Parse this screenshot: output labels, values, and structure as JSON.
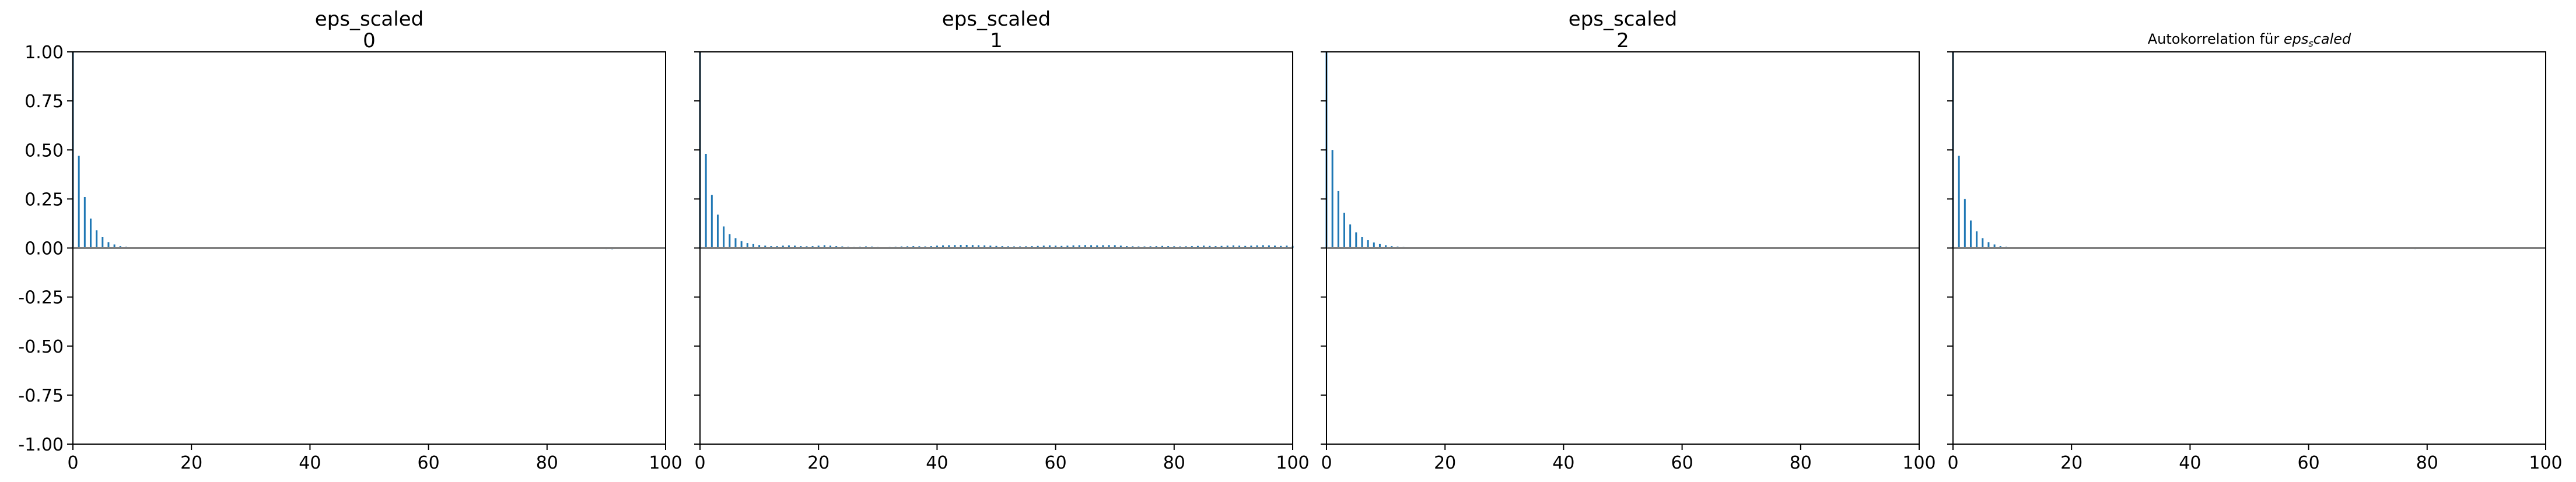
{
  "chart_data": [
    {
      "type": "bar",
      "title": "eps_scaled",
      "subtitle": "0",
      "xlim": [
        0,
        100
      ],
      "ylim": [
        -1.0,
        1.0
      ],
      "xticks": [
        "0",
        "20",
        "40",
        "60",
        "80",
        "100"
      ],
      "yticks": [
        "1.00",
        "0.75",
        "0.50",
        "0.25",
        "0.00",
        "-0.25",
        "-0.50",
        "-0.75",
        "-1.00"
      ],
      "show_yticklabels": true,
      "grid": false,
      "color": "#1f77b4",
      "values": [
        1.0,
        0.47,
        0.26,
        0.15,
        0.09,
        0.055,
        0.03,
        0.018,
        0.01,
        0.006,
        0.004,
        0.003,
        0.002,
        0.001,
        0.0,
        0.0,
        0.0,
        0.0,
        0.0,
        0.0,
        -0.001,
        -0.002,
        -0.003,
        -0.002,
        -0.001,
        0.0,
        0.0,
        0.0,
        -0.001,
        -0.001,
        0.0,
        0.0,
        -0.001,
        -0.002,
        -0.002,
        -0.001,
        0.0,
        0.0,
        0.0,
        -0.001,
        -0.001,
        0.0,
        0.0,
        -0.001,
        -0.002,
        -0.003,
        -0.002,
        -0.001,
        0.0,
        0.0,
        -0.001,
        -0.001,
        0.0,
        0.0,
        0.0,
        -0.001,
        -0.002,
        -0.001,
        0.0,
        0.0,
        0.0,
        0.0,
        -0.001,
        -0.002,
        -0.002,
        -0.001,
        0.0,
        0.0,
        -0.001,
        -0.002,
        -0.003,
        -0.002,
        -0.001,
        0.0,
        0.0,
        0.0,
        -0.001,
        -0.001,
        0.0,
        0.0,
        -0.001,
        -0.002,
        -0.002,
        -0.001,
        0.0,
        0.0,
        -0.001,
        -0.002,
        -0.003,
        -0.004,
        -0.005,
        -0.006,
        -0.004,
        -0.003,
        -0.002,
        -0.001,
        0.0,
        -0.001,
        -0.002,
        -0.001
      ]
    },
    {
      "type": "bar",
      "title": "eps_scaled",
      "subtitle": "1",
      "xlim": [
        0,
        100
      ],
      "ylim": [
        -1.0,
        1.0
      ],
      "xticks": [
        "0",
        "20",
        "40",
        "60",
        "80",
        "100"
      ],
      "show_yticklabels": false,
      "grid": false,
      "color": "#1f77b4",
      "values": [
        1.0,
        0.48,
        0.27,
        0.17,
        0.11,
        0.07,
        0.05,
        0.035,
        0.025,
        0.02,
        0.015,
        0.012,
        0.01,
        0.01,
        0.012,
        0.013,
        0.012,
        0.01,
        0.009,
        0.01,
        0.012,
        0.014,
        0.012,
        0.01,
        0.008,
        0.006,
        0.005,
        0.006,
        0.008,
        0.007,
        0.005,
        0.004,
        0.005,
        0.006,
        0.008,
        0.009,
        0.01,
        0.009,
        0.008,
        0.01,
        0.012,
        0.013,
        0.014,
        0.015,
        0.016,
        0.016,
        0.015,
        0.014,
        0.013,
        0.012,
        0.011,
        0.01,
        0.009,
        0.008,
        0.008,
        0.009,
        0.01,
        0.011,
        0.012,
        0.013,
        0.012,
        0.011,
        0.012,
        0.013,
        0.014,
        0.015,
        0.014,
        0.013,
        0.014,
        0.015,
        0.014,
        0.012,
        0.01,
        0.009,
        0.008,
        0.008,
        0.009,
        0.01,
        0.011,
        0.01,
        0.009,
        0.008,
        0.009,
        0.01,
        0.011,
        0.012,
        0.011,
        0.01,
        0.011,
        0.012,
        0.013,
        0.012,
        0.011,
        0.012,
        0.013,
        0.014,
        0.013,
        0.012,
        0.011,
        0.012,
        0.011
      ]
    },
    {
      "type": "bar",
      "title": "eps_scaled",
      "subtitle": "2",
      "xlim": [
        0,
        100
      ],
      "ylim": [
        -1.0,
        1.0
      ],
      "xticks": [
        "0",
        "20",
        "40",
        "60",
        "80",
        "100"
      ],
      "show_yticklabels": false,
      "grid": false,
      "color": "#1f77b4",
      "values": [
        1.0,
        0.5,
        0.29,
        0.18,
        0.12,
        0.08,
        0.055,
        0.04,
        0.028,
        0.02,
        0.014,
        0.01,
        0.007,
        0.005,
        0.003,
        0.002,
        0.001,
        0.0,
        0.0,
        0.0,
        0.001,
        0.002,
        0.001,
        0.0,
        0.0,
        0.0,
        0.001,
        0.0,
        0.0,
        -0.001,
        0.0,
        0.0,
        0.0,
        0.001,
        0.002,
        0.001,
        0.0,
        0.0,
        0.0,
        0.0,
        0.001,
        0.001,
        0.0,
        0.0,
        0.0,
        0.0,
        0.0,
        0.001,
        0.002,
        0.001,
        0.0,
        0.0,
        0.0,
        0.001,
        0.001,
        0.0,
        0.0,
        0.0,
        0.0,
        0.0,
        0.001,
        0.002,
        0.002,
        0.001,
        0.0,
        0.0,
        0.0,
        0.001,
        0.001,
        0.0,
        0.0,
        0.0,
        0.0,
        0.001,
        0.001,
        0.0,
        0.0,
        0.0,
        0.0,
        0.0,
        0.001,
        0.001,
        0.0,
        0.0,
        0.0,
        0.001,
        0.002,
        0.001,
        0.0,
        0.0,
        0.0,
        0.0,
        0.001,
        0.001,
        0.0,
        0.0,
        0.0,
        0.0,
        0.0,
        0.001,
        0.0
      ]
    },
    {
      "type": "bar",
      "title": "Autokorrelation für eps",
      "title_sub": "s",
      "title_suffix": "caled",
      "xlim": [
        0,
        100
      ],
      "ylim": [
        -1.0,
        1.0
      ],
      "xticks": [
        "0",
        "20",
        "40",
        "60",
        "80",
        "100"
      ],
      "show_yticklabels": false,
      "grid": false,
      "color": "#1f77b4",
      "values": [
        1.0,
        0.47,
        0.25,
        0.14,
        0.085,
        0.05,
        0.03,
        0.018,
        0.01,
        0.006,
        0.004,
        0.002,
        0.001,
        0.0,
        0.0,
        0.0,
        0.0,
        -0.001,
        -0.001,
        0.0,
        0.0,
        0.0,
        0.0,
        -0.001,
        -0.002,
        -0.001,
        0.0,
        0.0,
        0.0,
        0.0,
        -0.001,
        -0.001,
        0.0,
        0.0,
        0.0,
        0.0,
        -0.001,
        -0.002,
        -0.001,
        0.0,
        0.0,
        0.0,
        0.0,
        0.0,
        -0.001,
        -0.001,
        0.0,
        0.0,
        0.0,
        -0.001,
        -0.002,
        -0.002,
        -0.001,
        0.0,
        0.0,
        0.0,
        0.0,
        -0.001,
        -0.001,
        0.0,
        0.0,
        0.0,
        0.0,
        -0.001,
        -0.001,
        0.0,
        0.0,
        0.0,
        -0.001,
        -0.002,
        -0.001,
        0.0,
        0.0,
        0.0,
        -0.001,
        -0.002,
        -0.003,
        -0.004,
        -0.005,
        -0.004,
        -0.003,
        -0.002,
        -0.001,
        0.0,
        0.0
      ]
    }
  ]
}
